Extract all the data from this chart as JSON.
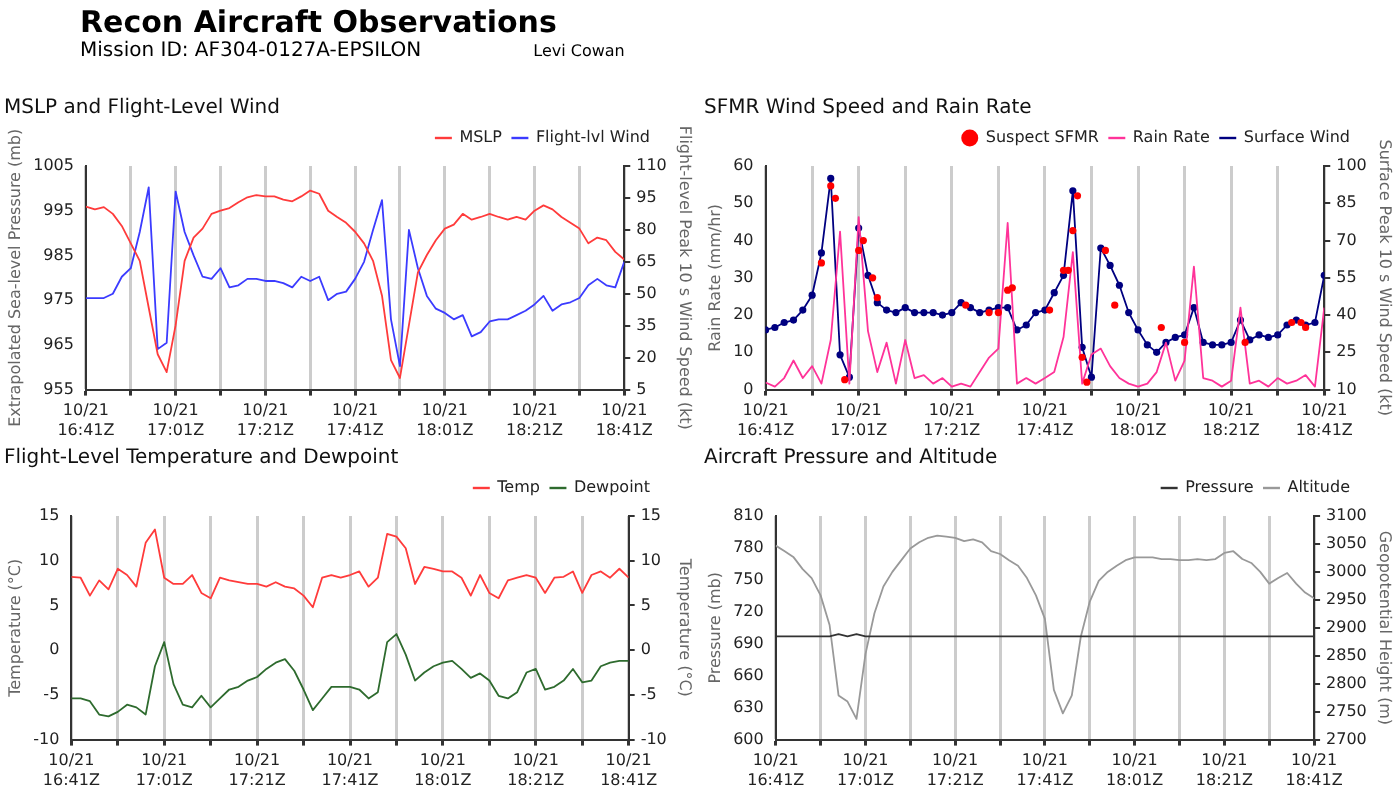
{
  "chart_data": [
    {
      "type": "other",
      "title": "Recon Aircraft Observations",
      "subtitle": "Mission ID: AF304-0127A-EPSILON",
      "annotations": [
        "Levi Cowan"
      ]
    },
    {
      "type": "line",
      "title": "MSLP and Flight-Level Wind",
      "ylabel": "Extrapolated Sea-level Pressure (mb)",
      "y2label": "Flight-level Peak 10 s Wind Speed (kt)",
      "legend": "top right",
      "grid": "x",
      "x": [
        "--10-21T16:41",
        "--10-21T16:43",
        "--10-21T16:45",
        "--10-21T16:47",
        "--10-21T16:49",
        "--10-21T16:51",
        "--10-21T16:53",
        "--10-21T16:55",
        "--10-21T16:57",
        "--10-21T16:59",
        "--10-21T17:01",
        "--10-21T17:03",
        "--10-21T17:05",
        "--10-21T17:07",
        "--10-21T17:09",
        "--10-21T17:11",
        "--10-21T17:13",
        "--10-21T17:15",
        "--10-21T17:17",
        "--10-21T17:19",
        "--10-21T17:21",
        "--10-21T17:23",
        "--10-21T17:25",
        "--10-21T17:27",
        "--10-21T17:29",
        "--10-21T17:31",
        "--10-21T17:33",
        "--10-21T17:35",
        "--10-21T17:37",
        "--10-21T17:39",
        "--10-21T17:41",
        "--10-21T17:43",
        "--10-21T17:45",
        "--10-21T17:47",
        "--10-21T17:49",
        "--10-21T17:51",
        "--10-21T17:53",
        "--10-21T17:55",
        "--10-21T17:57",
        "--10-21T17:59",
        "--10-21T18:01",
        "--10-21T18:03",
        "--10-21T18:05",
        "--10-21T18:07",
        "--10-21T18:09",
        "--10-21T18:11",
        "--10-21T18:13",
        "--10-21T18:15",
        "--10-21T18:17",
        "--10-21T18:19",
        "--10-21T18:21",
        "--10-21T18:23",
        "--10-21T18:25",
        "--10-21T18:27",
        "--10-21T18:29",
        "--10-21T18:31",
        "--10-21T18:33",
        "--10-21T18:35",
        "--10-21T18:37",
        "--10-21T18:39",
        "--10-21T18:41"
      ],
      "xlim": [
        "--10-21T16:41",
        "--10-21T18:41"
      ],
      "xticks": [
        {
          "value": "--10-21T16:41",
          "label": "10/21\n16:41Z"
        },
        {
          "value": "--10-21T16:51",
          "label": null
        },
        {
          "value": "--10-21T17:01",
          "label": "10/21\n17:01Z"
        },
        {
          "value": "--10-21T17:11",
          "label": null
        },
        {
          "value": "--10-21T17:21",
          "label": "10/21\n17:21Z"
        },
        {
          "value": "--10-21T17:31",
          "label": null
        },
        {
          "value": "--10-21T17:41",
          "label": "10/21\n17:41Z"
        },
        {
          "value": "--10-21T17:51",
          "label": null
        },
        {
          "value": "--10-21T18:01",
          "label": "10/21\n18:01Z"
        },
        {
          "value": "--10-21T18:11",
          "label": null
        },
        {
          "value": "--10-21T18:21",
          "label": "10/21\n18:21Z"
        },
        {
          "value": "--10-21T18:31",
          "label": null
        },
        {
          "value": "--10-21T18:41",
          "label": "10/21\n18:41Z"
        }
      ],
      "ylim": [
        955,
        1005
      ],
      "yticks": [
        955,
        965,
        975,
        985,
        995,
        1005
      ],
      "y2lim": [
        5,
        110
      ],
      "y2ticks": [
        5,
        20,
        35,
        50,
        65,
        80,
        95,
        110
      ],
      "series": [
        {
          "name": "MSLP",
          "color": "#ff3b3b",
          "values": [
            995.9,
            995.3,
            995.8,
            994.3,
            991.6,
            987.7,
            983.8,
            973.3,
            962.9,
            958.9,
            969.4,
            983.8,
            989,
            991,
            994.3,
            995,
            995.6,
            996.9,
            998,
            998.5,
            998.2,
            998.2,
            997.5,
            997.1,
            998.2,
            999.5,
            998.8,
            995,
            993.6,
            992.3,
            990.3,
            987.7,
            983.8,
            976,
            961.6,
            957.6,
            969.4,
            981.2,
            985.1,
            988.4,
            991,
            991.9,
            994.3,
            993,
            993.6,
            994.3,
            993.6,
            993,
            993.6,
            993,
            995,
            996.2,
            995.3,
            993.6,
            992.3,
            991,
            987.7,
            989,
            988.4,
            985.8,
            984.1
          ]
        },
        {
          "name": "Flight-lvl Wind",
          "color": "#3b3bff",
          "axis": "y2",
          "values": [
            48,
            48,
            48,
            50,
            58,
            62,
            79,
            100,
            24,
            27,
            98,
            79,
            68,
            58,
            57,
            62,
            53,
            54,
            57,
            57,
            56,
            56,
            55,
            53,
            58,
            56,
            58,
            47,
            50,
            51,
            57,
            65,
            80,
            94,
            38,
            16,
            80,
            62,
            49,
            43,
            41,
            38,
            40,
            30,
            32,
            37,
            38,
            38,
            40,
            42,
            45,
            49,
            42,
            45,
            46,
            48,
            54,
            57,
            54,
            53,
            65
          ]
        }
      ]
    },
    {
      "type": "line",
      "title": "SFMR Wind Speed and Rain Rate",
      "ylabel": "Rain Rate (mm/hr)",
      "y2label": "Surface Peak 10 s Wind Speed (kt)",
      "legend": "top right",
      "grid": "x",
      "x": [
        "--10-21T16:41",
        "--10-21T16:43",
        "--10-21T16:45",
        "--10-21T16:47",
        "--10-21T16:49",
        "--10-21T16:51",
        "--10-21T16:53",
        "--10-21T16:55",
        "--10-21T16:57",
        "--10-21T16:59",
        "--10-21T17:01",
        "--10-21T17:03",
        "--10-21T17:05",
        "--10-21T17:07",
        "--10-21T17:09",
        "--10-21T17:11",
        "--10-21T17:13",
        "--10-21T17:15",
        "--10-21T17:17",
        "--10-21T17:19",
        "--10-21T17:21",
        "--10-21T17:23",
        "--10-21T17:25",
        "--10-21T17:27",
        "--10-21T17:29",
        "--10-21T17:31",
        "--10-21T17:33",
        "--10-21T17:35",
        "--10-21T17:37",
        "--10-21T17:39",
        "--10-21T17:41",
        "--10-21T17:43",
        "--10-21T17:45",
        "--10-21T17:47",
        "--10-21T17:49",
        "--10-21T17:51",
        "--10-21T17:53",
        "--10-21T17:55",
        "--10-21T17:57",
        "--10-21T17:59",
        "--10-21T18:01",
        "--10-21T18:03",
        "--10-21T18:05",
        "--10-21T18:07",
        "--10-21T18:09",
        "--10-21T18:11",
        "--10-21T18:13",
        "--10-21T18:15",
        "--10-21T18:17",
        "--10-21T18:19",
        "--10-21T18:21",
        "--10-21T18:23",
        "--10-21T18:25",
        "--10-21T18:27",
        "--10-21T18:29",
        "--10-21T18:31",
        "--10-21T18:33",
        "--10-21T18:35",
        "--10-21T18:37",
        "--10-21T18:39",
        "--10-21T18:41"
      ],
      "xlim": [
        "--10-21T16:41",
        "--10-21T18:41"
      ],
      "xticks": [
        {
          "value": "--10-21T16:41",
          "label": "10/21\n16:41Z"
        },
        {
          "value": "--10-21T16:51",
          "label": null
        },
        {
          "value": "--10-21T17:01",
          "label": "10/21\n17:01Z"
        },
        {
          "value": "--10-21T17:11",
          "label": null
        },
        {
          "value": "--10-21T17:21",
          "label": "10/21\n17:21Z"
        },
        {
          "value": "--10-21T17:31",
          "label": null
        },
        {
          "value": "--10-21T17:41",
          "label": "10/21\n17:41Z"
        },
        {
          "value": "--10-21T17:51",
          "label": null
        },
        {
          "value": "--10-21T18:01",
          "label": "10/21\n18:01Z"
        },
        {
          "value": "--10-21T18:11",
          "label": null
        },
        {
          "value": "--10-21T18:21",
          "label": "10/21\n18:21Z"
        },
        {
          "value": "--10-21T18:31",
          "label": null
        },
        {
          "value": "--10-21T18:41",
          "label": "10/21\n18:41Z"
        }
      ],
      "ylim": [
        0,
        60
      ],
      "yticks": [
        0,
        10,
        20,
        30,
        40,
        50,
        60
      ],
      "y2lim": [
        10,
        100
      ],
      "y2ticks": [
        10,
        25,
        40,
        55,
        70,
        85,
        100
      ],
      "series": [
        {
          "name": "Rain Rate",
          "color": "#ff3399",
          "values": [
            1.9,
            0.8,
            3.1,
            7.8,
            3.1,
            6.3,
            1.6,
            13.3,
            42.4,
            1.6,
            46.3,
            15.7,
            4.7,
            12.6,
            1.6,
            13.3,
            3.1,
            3.9,
            1.6,
            3.1,
            0.8,
            1.6,
            0.8,
            4.7,
            8.6,
            11,
            44.7,
            1.6,
            3.1,
            1.6,
            3.1,
            4.7,
            14.1,
            36.9,
            1.6,
            9.4,
            11,
            6.3,
            3.1,
            1.6,
            0.8,
            1.6,
            4.7,
            12.6,
            2.4,
            7.8,
            33,
            3.1,
            2.4,
            0.8,
            2.4,
            22,
            1.6,
            2.4,
            0.8,
            3.1,
            1.6,
            2.4,
            3.9,
            0.8,
            22
          ]
        },
        {
          "name": "Surface Wind",
          "color": "#000080",
          "axis": "y2",
          "marker": "circle",
          "values": [
            34,
            35,
            37,
            38,
            42,
            48,
            65,
            95,
            24,
            15,
            75,
            56,
            45,
            42,
            41,
            43,
            41,
            41,
            41,
            40,
            41,
            45,
            43,
            41,
            42,
            43,
            43,
            34,
            36,
            41,
            42,
            49,
            56,
            90,
            27,
            15,
            67,
            60,
            52,
            41,
            34,
            28,
            25,
            29,
            31,
            32,
            43,
            29,
            28,
            28,
            29,
            38,
            30,
            32,
            31,
            32,
            36,
            38,
            36,
            37,
            56
          ]
        },
        {
          "name": "Suspect SFMR",
          "color": "#ff0000",
          "type": "scatter",
          "axis": "y2",
          "marker": "circle",
          "x": [
            "--10-21T16:53",
            "--10-21T16:55",
            "--10-21T16:56",
            "--10-21T16:58",
            "--10-21T17:01",
            "--10-21T17:02",
            "--10-21T17:04",
            "--10-21T17:05",
            "--10-21T17:24",
            "--10-21T17:29",
            "--10-21T17:31",
            "--10-21T17:33",
            "--10-21T17:34",
            "--10-21T17:42",
            "--10-21T17:45",
            "--10-21T17:46",
            "--10-21T17:47",
            "--10-21T17:48",
            "--10-21T17:49",
            "--10-21T17:50",
            "--10-21T17:54",
            "--10-21T17:56",
            "--10-21T18:06",
            "--10-21T18:11",
            "--10-21T18:24",
            "--10-21T18:34",
            "--10-21T18:36",
            "--10-21T18:37"
          ],
          "values": [
            61,
            92,
            87,
            14,
            66,
            70,
            55,
            47,
            44,
            41,
            41,
            50,
            51,
            42,
            58,
            58,
            74,
            88,
            23,
            13,
            66,
            44,
            35,
            29,
            29,
            37,
            37,
            35
          ]
        }
      ]
    },
    {
      "type": "line",
      "title": "Flight-Level Temperature and Dewpoint",
      "ylabel": "Temperature (°C)",
      "y2label": "Temperature (°C)",
      "legend": "top right",
      "grid": "x",
      "x": [
        "--10-21T16:41",
        "--10-21T16:43",
        "--10-21T16:45",
        "--10-21T16:47",
        "--10-21T16:49",
        "--10-21T16:51",
        "--10-21T16:53",
        "--10-21T16:55",
        "--10-21T16:57",
        "--10-21T16:59",
        "--10-21T17:01",
        "--10-21T17:03",
        "--10-21T17:05",
        "--10-21T17:07",
        "--10-21T17:09",
        "--10-21T17:11",
        "--10-21T17:13",
        "--10-21T17:15",
        "--10-21T17:17",
        "--10-21T17:19",
        "--10-21T17:21",
        "--10-21T17:23",
        "--10-21T17:25",
        "--10-21T17:27",
        "--10-21T17:29",
        "--10-21T17:31",
        "--10-21T17:33",
        "--10-21T17:35",
        "--10-21T17:37",
        "--10-21T17:39",
        "--10-21T17:41",
        "--10-21T17:43",
        "--10-21T17:45",
        "--10-21T17:47",
        "--10-21T17:49",
        "--10-21T17:51",
        "--10-21T17:53",
        "--10-21T17:55",
        "--10-21T17:57",
        "--10-21T17:59",
        "--10-21T18:01",
        "--10-21T18:03",
        "--10-21T18:05",
        "--10-21T18:07",
        "--10-21T18:09",
        "--10-21T18:11",
        "--10-21T18:13",
        "--10-21T18:15",
        "--10-21T18:17",
        "--10-21T18:19",
        "--10-21T18:21",
        "--10-21T18:23",
        "--10-21T18:25",
        "--10-21T18:27",
        "--10-21T18:29",
        "--10-21T18:31",
        "--10-21T18:33",
        "--10-21T18:35",
        "--10-21T18:37",
        "--10-21T18:39",
        "--10-21T18:41"
      ],
      "xlim": [
        "--10-21T16:41",
        "--10-21T18:41"
      ],
      "xticks": [
        {
          "value": "--10-21T16:41",
          "label": "10/21\n16:41Z"
        },
        {
          "value": "--10-21T16:51",
          "label": null
        },
        {
          "value": "--10-21T17:01",
          "label": "10/21\n17:01Z"
        },
        {
          "value": "--10-21T17:11",
          "label": null
        },
        {
          "value": "--10-21T17:21",
          "label": "10/21\n17:21Z"
        },
        {
          "value": "--10-21T17:31",
          "label": null
        },
        {
          "value": "--10-21T17:41",
          "label": "10/21\n17:41Z"
        },
        {
          "value": "--10-21T17:51",
          "label": null
        },
        {
          "value": "--10-21T18:01",
          "label": "10/21\n18:01Z"
        },
        {
          "value": "--10-21T18:11",
          "label": null
        },
        {
          "value": "--10-21T18:21",
          "label": "10/21\n18:21Z"
        },
        {
          "value": "--10-21T18:31",
          "label": null
        },
        {
          "value": "--10-21T18:41",
          "label": "10/21\n18:41Z"
        }
      ],
      "ylim": [
        -10,
        15
      ],
      "yticks": [
        -10,
        -5,
        0,
        5,
        10,
        15
      ],
      "y2lim": [
        -10,
        15
      ],
      "y2ticks": [
        -10,
        -5,
        0,
        5,
        10,
        15
      ],
      "series": [
        {
          "name": "Temp",
          "color": "#ff3b3b",
          "values": [
            8.2,
            8.1,
            6.1,
            7.8,
            6.8,
            9.1,
            8.4,
            7.1,
            12,
            13.5,
            8.1,
            7.4,
            7.4,
            8.4,
            6.4,
            5.8,
            8.1,
            7.8,
            7.6,
            7.4,
            7.4,
            7.1,
            7.6,
            7.1,
            6.9,
            6.1,
            4.8,
            8.1,
            8.4,
            8.1,
            8.4,
            8.8,
            7.1,
            8.1,
            13,
            12.7,
            11.4,
            7.4,
            9.3,
            9.1,
            8.8,
            8.8,
            8.1,
            6.1,
            8.4,
            6.4,
            5.8,
            7.8,
            8.1,
            8.4,
            8.1,
            6.4,
            8.1,
            8.2,
            8.8,
            6.4,
            8.4,
            8.8,
            8.1,
            9.1,
            8.1
          ]
        },
        {
          "name": "Dewpoint",
          "color": "#2e6b2e",
          "values": [
            -5.4,
            -5.4,
            -5.7,
            -7.2,
            -7.4,
            -6.9,
            -6.1,
            -6.4,
            -7.2,
            -1.8,
            0.9,
            -3.8,
            -6.1,
            -6.4,
            -5.1,
            -6.4,
            -5.4,
            -4.4,
            -4.1,
            -3.4,
            -3,
            -2.1,
            -1.4,
            -1,
            -2.3,
            -4.4,
            -6.7,
            -5.4,
            -4.1,
            -4.1,
            -4.1,
            -4.4,
            -5.4,
            -4.7,
            0.9,
            1.8,
            -0.5,
            -3.4,
            -2.5,
            -1.8,
            -1.4,
            -1.2,
            -2.1,
            -3.1,
            -2.6,
            -3.4,
            -5.1,
            -5.4,
            -4.7,
            -2.5,
            -2.1,
            -4.4,
            -4.1,
            -3.4,
            -2.1,
            -3.6,
            -3.4,
            -1.8,
            -1.4,
            -1.2,
            -1.2
          ]
        }
      ]
    },
    {
      "type": "line",
      "title": "Aircraft Pressure and Altitude",
      "ylabel": "Pressure (mb)",
      "y2label": "Geopotential Height (m)",
      "legend": "top right",
      "grid": "x",
      "x": [
        "--10-21T16:41",
        "--10-21T16:43",
        "--10-21T16:45",
        "--10-21T16:47",
        "--10-21T16:49",
        "--10-21T16:51",
        "--10-21T16:53",
        "--10-21T16:55",
        "--10-21T16:57",
        "--10-21T16:59",
        "--10-21T17:01",
        "--10-21T17:03",
        "--10-21T17:05",
        "--10-21T17:07",
        "--10-21T17:09",
        "--10-21T17:11",
        "--10-21T17:13",
        "--10-21T17:15",
        "--10-21T17:17",
        "--10-21T17:19",
        "--10-21T17:21",
        "--10-21T17:23",
        "--10-21T17:25",
        "--10-21T17:27",
        "--10-21T17:29",
        "--10-21T17:31",
        "--10-21T17:33",
        "--10-21T17:35",
        "--10-21T17:37",
        "--10-21T17:39",
        "--10-21T17:41",
        "--10-21T17:43",
        "--10-21T17:45",
        "--10-21T17:47",
        "--10-21T17:49",
        "--10-21T17:51",
        "--10-21T17:53",
        "--10-21T17:55",
        "--10-21T17:57",
        "--10-21T17:59",
        "--10-21T18:01",
        "--10-21T18:03",
        "--10-21T18:05",
        "--10-21T18:07",
        "--10-21T18:09",
        "--10-21T18:11",
        "--10-21T18:13",
        "--10-21T18:15",
        "--10-21T18:17",
        "--10-21T18:19",
        "--10-21T18:21",
        "--10-21T18:23",
        "--10-21T18:25",
        "--10-21T18:27",
        "--10-21T18:29",
        "--10-21T18:31",
        "--10-21T18:33",
        "--10-21T18:35",
        "--10-21T18:37",
        "--10-21T18:39",
        "--10-21T18:41"
      ],
      "xlim": [
        "--10-21T16:41",
        "--10-21T18:41"
      ],
      "xticks": [
        {
          "value": "--10-21T16:41",
          "label": "10/21\n16:41Z"
        },
        {
          "value": "--10-21T16:51",
          "label": null
        },
        {
          "value": "--10-21T17:01",
          "label": "10/21\n17:01Z"
        },
        {
          "value": "--10-21T17:11",
          "label": null
        },
        {
          "value": "--10-21T17:21",
          "label": "10/21\n17:21Z"
        },
        {
          "value": "--10-21T17:31",
          "label": null
        },
        {
          "value": "--10-21T17:41",
          "label": "10/21\n17:41Z"
        },
        {
          "value": "--10-21T17:51",
          "label": null
        },
        {
          "value": "--10-21T18:01",
          "label": "10/21\n18:01Z"
        },
        {
          "value": "--10-21T18:11",
          "label": null
        },
        {
          "value": "--10-21T18:21",
          "label": "10/21\n18:21Z"
        },
        {
          "value": "--10-21T18:31",
          "label": null
        },
        {
          "value": "--10-21T18:41",
          "label": "10/21\n18:41Z"
        }
      ],
      "ylim": [
        600,
        810
      ],
      "yticks": [
        600,
        630,
        660,
        690,
        720,
        750,
        780,
        810
      ],
      "y2lim": [
        2700,
        3100
      ],
      "y2ticks": [
        2700,
        2750,
        2800,
        2850,
        2900,
        2950,
        3000,
        3050,
        3100
      ],
      "series": [
        {
          "name": "Pressure",
          "color": "#333333",
          "values": [
            697,
            697,
            697,
            697,
            697,
            697,
            697,
            699,
            697,
            699,
            697,
            697,
            697,
            697,
            697,
            697,
            697,
            697,
            697,
            697,
            697,
            697,
            697,
            697,
            697,
            697,
            697,
            697,
            697,
            697,
            697,
            697,
            697,
            697,
            697,
            697,
            697,
            697,
            697,
            697,
            697,
            697,
            697,
            697,
            697,
            697,
            697,
            697,
            697,
            697,
            697,
            697,
            697,
            697,
            697,
            697,
            697,
            697,
            697,
            697,
            697
          ]
        },
        {
          "name": "Altitude",
          "color": "#999999",
          "axis": "y2",
          "values": [
            3047,
            3037,
            3026,
            3005,
            2989,
            2958,
            2905,
            2779,
            2768,
            2737,
            2853,
            2926,
            2974,
            3000,
            3021,
            3042,
            3053,
            3061,
            3065,
            3063,
            3061,
            3055,
            3058,
            3053,
            3037,
            3032,
            3021,
            3011,
            2989,
            2958,
            2916,
            2789,
            2747,
            2779,
            2884,
            2947,
            2984,
            3000,
            3011,
            3021,
            3026,
            3026,
            3026,
            3023,
            3023,
            3021,
            3021,
            3023,
            3021,
            3023,
            3034,
            3037,
            3023,
            3016,
            3000,
            2979,
            2989,
            2998,
            2979,
            2963,
            2953
          ]
        }
      ]
    }
  ]
}
